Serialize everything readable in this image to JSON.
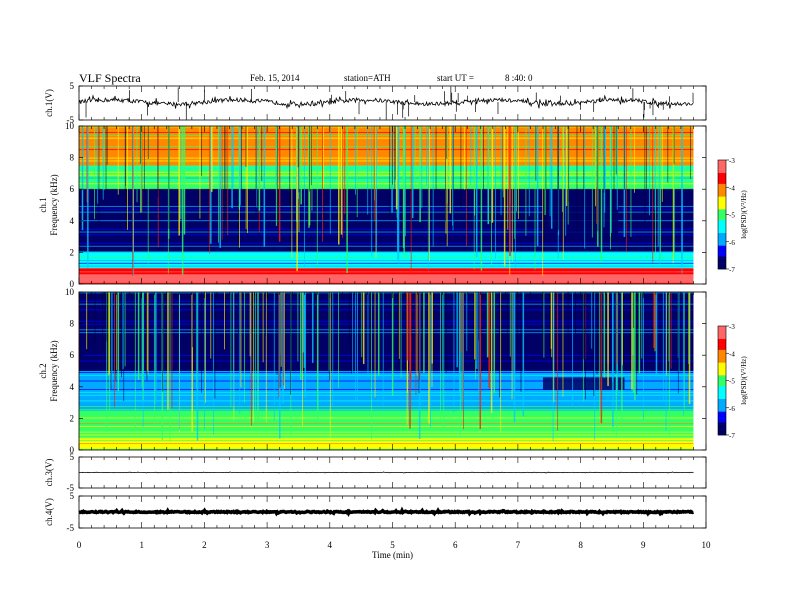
{
  "header": {
    "title": "VLF Spectra",
    "date": "Feb. 15, 2014",
    "station": "station=ATH",
    "start_label": "start UT =",
    "start_time": "8 :40: 0"
  },
  "colors": {
    "background": "#ffffff",
    "trace": "#000000",
    "colormap": [
      "#000066",
      "#0000ff",
      "#00aaff",
      "#00ffff",
      "#33ff66",
      "#ffff00",
      "#ff8800",
      "#ff0000",
      "#ff6666"
    ]
  },
  "chart_data": [
    {
      "type": "line",
      "name": "ch1-waveform",
      "ylabel": "ch.1(V)",
      "yticks": [
        "5",
        "-5"
      ],
      "ylim": [
        -5,
        5
      ],
      "xlim": [
        0,
        10
      ],
      "data_end_min": 9.8,
      "baseline_v": 0.3,
      "noise_amplitude_v": 1
    },
    {
      "type": "heatmap",
      "name": "ch1-spectrogram",
      "ylabel": "Frequency (kHz)",
      "channel_label": "ch.1",
      "yticks": [
        "0",
        "2",
        "4",
        "6",
        "8",
        "10"
      ],
      "ylim": [
        0,
        10
      ],
      "xlim": [
        0,
        10
      ],
      "colorbar": {
        "label": "log(PSD)(V²/Hz)",
        "ticks": [
          "-3",
          "-4",
          "-5",
          "-6",
          "-7"
        ],
        "range": [
          -7,
          -3
        ]
      },
      "bands": [
        {
          "f_min": 0,
          "f_max": 0.6,
          "log_psd": -3.3
        },
        {
          "f_min": 0.6,
          "f_max": 1.0,
          "log_psd": -3.6
        },
        {
          "f_min": 1.0,
          "f_max": 2.0,
          "log_psd": -5.4
        },
        {
          "f_min": 2.0,
          "f_max": 6.0,
          "log_psd": -6.6
        },
        {
          "f_min": 6.0,
          "f_max": 7.5,
          "log_psd": -5.2
        },
        {
          "f_min": 7.5,
          "f_max": 10,
          "log_psd": -4.3
        }
      ],
      "quiet_patch": {
        "t_start": 7.4,
        "t_end": 8.6,
        "f_min": 2.8,
        "f_max": 5.5
      }
    },
    {
      "type": "heatmap",
      "name": "ch2-spectrogram",
      "ylabel": "Frequency (kHz)",
      "channel_label": "ch.2",
      "yticks": [
        "0",
        "2",
        "4",
        "6",
        "8",
        "10"
      ],
      "ylim": [
        0,
        10
      ],
      "xlim": [
        0,
        10
      ],
      "colorbar": {
        "label": "log(PSD)(V²/Hz)",
        "ticks": [
          "-3",
          "-4",
          "-5",
          "-6",
          "-7"
        ],
        "range": [
          -7,
          -3
        ]
      },
      "bands": [
        {
          "f_min": 0,
          "f_max": 0.8,
          "log_psd": -4.4
        },
        {
          "f_min": 0.8,
          "f_max": 2.5,
          "log_psd": -4.8
        },
        {
          "f_min": 2.5,
          "f_max": 5.0,
          "log_psd": -5.8
        },
        {
          "f_min": 5.0,
          "f_max": 10,
          "log_psd": -6.7
        }
      ],
      "quiet_patch": {
        "t_start": 7.4,
        "t_end": 8.7,
        "f_min": 3.8,
        "f_max": 4.6
      }
    },
    {
      "type": "line",
      "name": "ch3-waveform",
      "ylabel": "ch.3(V)",
      "yticks": [
        "5",
        "-5"
      ],
      "ylim": [
        -5,
        5
      ],
      "xlim": [
        0,
        10
      ],
      "data_end_min": 9.8,
      "baseline_v": 0,
      "noise_amplitude_v": 0.1
    },
    {
      "type": "line",
      "name": "ch4-waveform",
      "ylabel": "ch.4(V)",
      "yticks": [
        "5",
        "-5"
      ],
      "ylim": [
        -5,
        5
      ],
      "xlim": [
        0,
        10
      ],
      "data_end_min": 9.8,
      "baseline_v": 0,
      "noise_amplitude_v": 0.3
    }
  ],
  "x_axis": {
    "label": "Time (min)",
    "ticks": [
      "0",
      "1",
      "2",
      "3",
      "4",
      "5",
      "6",
      "7",
      "8",
      "9",
      "10"
    ],
    "xlim": [
      0,
      10
    ]
  }
}
